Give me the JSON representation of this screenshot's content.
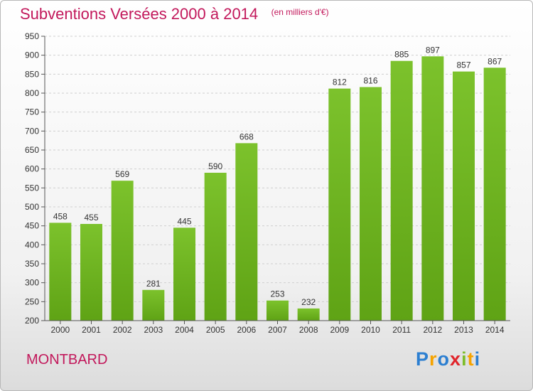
{
  "chart_data": {
    "type": "bar",
    "title": "Subventions Versées 2000 à 2014",
    "unit": "(en milliers d'€)",
    "categories": [
      "2000",
      "2001",
      "2002",
      "2003",
      "2004",
      "2005",
      "2006",
      "2007",
      "2008",
      "2009",
      "2010",
      "2011",
      "2012",
      "2013",
      "2014"
    ],
    "values": [
      458,
      455,
      569,
      281,
      445,
      590,
      668,
      253,
      232,
      812,
      816,
      885,
      897,
      857,
      867
    ],
    "yticks": [
      200,
      250,
      300,
      350,
      400,
      450,
      500,
      550,
      600,
      650,
      700,
      750,
      800,
      850,
      900,
      950
    ],
    "ylim": [
      200,
      950
    ],
    "grid": true,
    "bar_color": "#7cc22c",
    "bar_color_dark": "#5fa315",
    "label_color": "#333333"
  },
  "footer": {
    "town": "MONTBARD",
    "logo": [
      "P",
      "r",
      "o",
      "x",
      "i",
      "t",
      "i"
    ],
    "logo_colors": [
      "#2c7fd1",
      "#f5a300",
      "#2c7fd1",
      "#e0242a",
      "#7dbd2a",
      "#f5a300",
      "#2c7fd1"
    ]
  }
}
